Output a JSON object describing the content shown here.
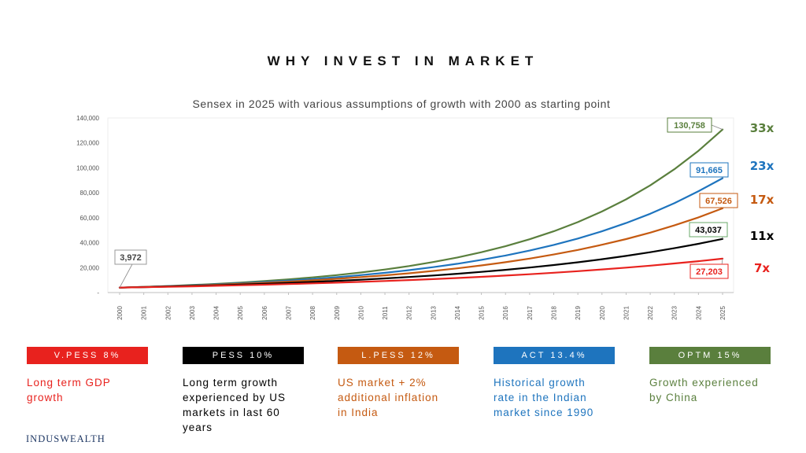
{
  "page": {
    "title": "WHY INVEST IN MARKET",
    "logo": "INDUSWEALTH"
  },
  "chart_data": {
    "type": "line",
    "title": "Sensex in 2025 with various assumptions of growth with 2000 as starting point",
    "xlabel": "",
    "ylabel": "",
    "x": [
      "2000",
      "2001",
      "2002",
      "2003",
      "2004",
      "2005",
      "2006",
      "2007",
      "2008",
      "2009",
      "2010",
      "2011",
      "2012",
      "2013",
      "2014",
      "2015",
      "2016",
      "2017",
      "2018",
      "2019",
      "2020",
      "2021",
      "2022",
      "2023",
      "2024",
      "2025"
    ],
    "ylim": [
      0,
      140000
    ],
    "yticks": [
      0,
      20000,
      40000,
      60000,
      80000,
      100000,
      120000,
      140000
    ],
    "ytick_labels": [
      "-",
      "20,000",
      "40,000",
      "60,000",
      "80,000",
      "100,000",
      "120,000",
      "140,000"
    ],
    "grid": false,
    "start_label": "3,972",
    "series": [
      {
        "key": "optm",
        "growth_rate": 0.15,
        "color": "#5a7f3d",
        "label_color": "#5a7f3d",
        "end_label": "130,758",
        "multiple": "33x",
        "multiple_color": "#5a7f3d",
        "values": [
          3972,
          4568,
          5253,
          6041,
          6947,
          7989,
          9187,
          10566,
          12151,
          13973,
          16069,
          18480,
          21252,
          24440,
          28105,
          32321,
          37169,
          42744,
          49156,
          56529,
          65009,
          74760,
          85974,
          98870,
          113700,
          130758
        ]
      },
      {
        "key": "act",
        "growth_rate": 0.134,
        "color": "#1e74be",
        "label_color": "#1e74be",
        "end_label": "91,665",
        "multiple": "23x",
        "multiple_color": "#1e74be",
        "values": [
          3972,
          4504,
          5108,
          5793,
          6569,
          7450,
          8448,
          9581,
          10865,
          12321,
          13972,
          15844,
          17968,
          20375,
          23106,
          26203,
          29714,
          33696,
          38211,
          43332,
          49138,
          55723,
          63190,
          71657,
          81259,
          91665
        ]
      },
      {
        "key": "lpess",
        "growth_rate": 0.12,
        "color": "#c55a11",
        "label_color": "#c55a11",
        "end_label": "67,526",
        "multiple": "17x",
        "multiple_color": "#c55a11",
        "values": [
          3972,
          4449,
          4983,
          5580,
          6250,
          7000,
          7840,
          8781,
          9835,
          11015,
          12337,
          13817,
          15475,
          17332,
          19412,
          21741,
          24350,
          27272,
          30545,
          34210,
          38315,
          42913,
          48063,
          53830,
          60290,
          67526
        ]
      },
      {
        "key": "pess",
        "growth_rate": 0.1,
        "color": "#000000",
        "label_color": "#000000",
        "end_label": "43,037",
        "multiple": "11x",
        "multiple_color": "#000000",
        "values": [
          3972,
          4369,
          4806,
          5287,
          5815,
          6397,
          7037,
          7740,
          8514,
          9366,
          10302,
          11333,
          12466,
          13712,
          15084,
          16592,
          18251,
          20076,
          22084,
          24292,
          26722,
          29394,
          32333,
          35567,
          39123,
          43037
        ]
      },
      {
        "key": "vpess",
        "growth_rate": 0.08,
        "color": "#e8221e",
        "label_color": "#e8221e",
        "end_label": "27,203",
        "multiple": "7x",
        "multiple_color": "#e8221e",
        "values": [
          3972,
          4290,
          4633,
          5004,
          5404,
          5836,
          6303,
          6807,
          7352,
          7940,
          8575,
          9261,
          10002,
          10802,
          11667,
          12600,
          13608,
          14697,
          15872,
          17142,
          18513,
          19995,
          21594,
          23322,
          25187,
          27203
        ]
      }
    ]
  },
  "scenarios": [
    {
      "key": "vpess",
      "label": "V.PESS 8%",
      "bg": "#e8221e",
      "text_color": "#e8221e",
      "description": [
        "Long term GDP",
        "growth"
      ]
    },
    {
      "key": "pess",
      "label": "PESS 10%",
      "bg": "#000000",
      "text_color": "#000000",
      "description": [
        "Long term growth",
        "experienced by US",
        "markets in last 60",
        "years"
      ]
    },
    {
      "key": "lpess",
      "label": "L.PESS 12%",
      "bg": "#c55a11",
      "text_color": "#c55a11",
      "description": [
        "US market + 2%",
        "additional inflation",
        "in India"
      ]
    },
    {
      "key": "act",
      "label": "ACT 13.4%",
      "bg": "#1e74be",
      "text_color": "#1e74be",
      "description": [
        "Historical growth",
        "rate in the Indian",
        "market since 1990"
      ]
    },
    {
      "key": "optm",
      "label": "OPTM 15%",
      "bg": "#5a7f3d",
      "text_color": "#5a7f3d",
      "description": [
        "Growth experienced",
        "by China"
      ]
    }
  ]
}
